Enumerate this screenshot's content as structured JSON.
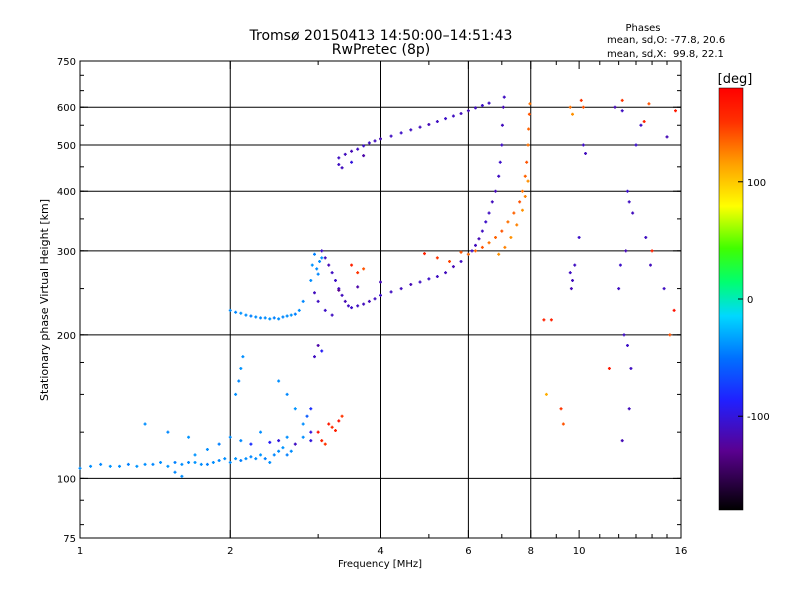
{
  "chart_data": {
    "type": "scatter",
    "title": "Tromsø 20150413 14:50:00–14:51:43",
    "subtitle": "RwPretec (8p)",
    "stats": {
      "heading": "Phases",
      "line_o": "mean, sd,O: -77.8, 20.6",
      "line_x": "mean, sd,X:  99.8, 22.1"
    },
    "xlabel": "Frequency [MHz]",
    "ylabel": "Stationary phase Virtual Height [km]",
    "x_scale": "log",
    "y_scale": "log",
    "xlim": [
      1,
      16
    ],
    "ylim": [
      75,
      750
    ],
    "x_ticks": [
      1,
      2,
      4,
      6,
      8,
      10,
      16
    ],
    "y_ticks": [
      75,
      100,
      200,
      300,
      400,
      500,
      600,
      750
    ],
    "x_gridlines": [
      2,
      4,
      6,
      8
    ],
    "y_gridlines": [
      100,
      200,
      300,
      400,
      500,
      600
    ],
    "grid": true,
    "colorbar": {
      "label": "[deg]",
      "range": [
        -180,
        180
      ],
      "ticks": [
        100,
        0,
        -100
      ]
    },
    "series": [
      {
        "points": [
          [
            1.0,
            105,
            -40
          ],
          [
            1.05,
            106,
            -40
          ],
          [
            1.1,
            107,
            -42
          ],
          [
            1.15,
            106,
            -38
          ],
          [
            1.2,
            106,
            -40
          ],
          [
            1.25,
            107,
            -45
          ],
          [
            1.3,
            106,
            -38
          ],
          [
            1.35,
            107,
            -40
          ],
          [
            1.4,
            107,
            -42
          ],
          [
            1.45,
            108,
            -40
          ],
          [
            1.5,
            106,
            -38
          ],
          [
            1.55,
            108,
            -45
          ],
          [
            1.6,
            107,
            -40
          ],
          [
            1.65,
            108,
            -42
          ],
          [
            1.7,
            108,
            -38
          ],
          [
            1.75,
            107,
            -40
          ],
          [
            1.8,
            107,
            -45
          ],
          [
            1.85,
            108,
            -40
          ],
          [
            1.9,
            109,
            -42
          ],
          [
            1.95,
            110,
            -40
          ],
          [
            2.0,
            108,
            -40
          ],
          [
            2.05,
            110,
            -38
          ],
          [
            2.1,
            109,
            -45
          ],
          [
            2.15,
            110,
            -40
          ],
          [
            2.2,
            111,
            -42
          ],
          [
            2.25,
            110,
            -40
          ],
          [
            2.3,
            112,
            -38
          ],
          [
            2.35,
            110,
            -45
          ],
          [
            2.4,
            108,
            -40
          ],
          [
            2.45,
            112,
            -42
          ],
          [
            2.5,
            114,
            -40
          ],
          [
            2.55,
            116,
            -38
          ],
          [
            2.6,
            112,
            -45
          ],
          [
            2.65,
            114,
            -40
          ],
          [
            1.6,
            101,
            -40
          ],
          [
            1.55,
            103,
            -42
          ],
          [
            1.7,
            112,
            -38
          ],
          [
            1.8,
            115,
            -40
          ],
          [
            1.9,
            118,
            -45
          ],
          [
            2.0,
            122,
            -40
          ],
          [
            2.1,
            120,
            -42
          ],
          [
            2.2,
            118,
            -80
          ],
          [
            2.3,
            125,
            -40
          ],
          [
            2.4,
            119,
            -90
          ],
          [
            2.5,
            120,
            -100
          ],
          [
            2.6,
            122,
            -40
          ],
          [
            2.7,
            118,
            -110
          ],
          [
            2.8,
            122,
            -40
          ],
          [
            2.9,
            120,
            -100
          ],
          [
            2.05,
            150,
            -40
          ],
          [
            2.08,
            160,
            -42
          ],
          [
            2.1,
            170,
            -38
          ],
          [
            2.12,
            180,
            -40
          ],
          [
            2.5,
            160,
            -40
          ],
          [
            2.6,
            150,
            -42
          ],
          [
            2.7,
            140,
            -38
          ],
          [
            2.8,
            130,
            -40
          ],
          [
            2.9,
            125,
            -100
          ],
          [
            2.95,
            180,
            -110
          ],
          [
            3.0,
            190,
            -120
          ],
          [
            3.05,
            185,
            -90
          ],
          [
            2.9,
            140,
            -80
          ],
          [
            2.85,
            135,
            -60
          ],
          [
            1.35,
            130,
            -40
          ],
          [
            1.5,
            125,
            -42
          ],
          [
            1.65,
            122,
            -38
          ]
        ]
      },
      {
        "points": [
          [
            2.0,
            225,
            -40
          ],
          [
            2.05,
            223,
            -42
          ],
          [
            2.1,
            222,
            -38
          ],
          [
            2.15,
            220,
            -40
          ],
          [
            2.2,
            219,
            -45
          ],
          [
            2.25,
            218,
            -40
          ],
          [
            2.3,
            217,
            -42
          ],
          [
            2.35,
            217,
            -40
          ],
          [
            2.4,
            216,
            -38
          ],
          [
            2.45,
            217,
            -45
          ],
          [
            2.5,
            216,
            -40
          ],
          [
            2.55,
            218,
            -42
          ],
          [
            2.6,
            219,
            -40
          ],
          [
            2.65,
            220,
            -38
          ],
          [
            2.7,
            221,
            -45
          ],
          [
            2.75,
            225,
            -40
          ],
          [
            2.8,
            235,
            -42
          ],
          [
            2.9,
            260,
            -40
          ],
          [
            2.92,
            280,
            -38
          ],
          [
            2.95,
            295,
            -45
          ],
          [
            2.98,
            275,
            -40
          ],
          [
            3.0,
            268,
            -42
          ],
          [
            3.02,
            285,
            -40
          ],
          [
            3.05,
            290,
            -38
          ]
        ]
      },
      {
        "points": [
          [
            3.05,
            300,
            -110
          ],
          [
            3.1,
            290,
            -112
          ],
          [
            3.15,
            280,
            -115
          ],
          [
            3.2,
            270,
            -110
          ],
          [
            3.25,
            260,
            -108
          ],
          [
            3.3,
            250,
            -110
          ],
          [
            3.35,
            242,
            -112
          ],
          [
            3.4,
            235,
            -115
          ],
          [
            3.45,
            230,
            -110
          ],
          [
            3.5,
            228,
            -108
          ],
          [
            3.6,
            230,
            -110
          ],
          [
            3.7,
            232,
            -112
          ],
          [
            3.8,
            235,
            -115
          ],
          [
            3.9,
            238,
            -110
          ],
          [
            4.0,
            242,
            -108
          ],
          [
            4.2,
            246,
            -110
          ],
          [
            4.4,
            250,
            -112
          ],
          [
            4.6,
            255,
            -115
          ],
          [
            4.8,
            258,
            -110
          ],
          [
            5.0,
            262,
            -108
          ],
          [
            5.2,
            265,
            -110
          ],
          [
            5.4,
            270,
            -112
          ],
          [
            5.6,
            278,
            -115
          ],
          [
            5.8,
            285,
            -110
          ],
          [
            6.0,
            295,
            -108
          ],
          [
            6.1,
            300,
            -110
          ],
          [
            6.2,
            308,
            -112
          ],
          [
            6.3,
            318,
            -115
          ],
          [
            6.4,
            330,
            -110
          ],
          [
            6.5,
            345,
            -108
          ],
          [
            6.6,
            360,
            -110
          ],
          [
            6.7,
            380,
            -112
          ],
          [
            6.8,
            400,
            -115
          ],
          [
            6.9,
            430,
            -110
          ],
          [
            6.95,
            460,
            -108
          ],
          [
            7.0,
            500,
            -110
          ],
          [
            7.02,
            550,
            -112
          ],
          [
            7.05,
            600,
            -115
          ],
          [
            7.08,
            630,
            -110
          ],
          [
            3.2,
            220,
            -110
          ],
          [
            3.1,
            225,
            -108
          ],
          [
            3.0,
            235,
            -110
          ],
          [
            2.95,
            245,
            -112
          ],
          [
            3.3,
            248,
            -130
          ],
          [
            3.6,
            252,
            -120
          ],
          [
            4.0,
            258,
            -115
          ]
        ]
      },
      {
        "points": [
          [
            3.3,
            470,
            -110
          ],
          [
            3.4,
            478,
            -112
          ],
          [
            3.5,
            485,
            -115
          ],
          [
            3.6,
            490,
            -110
          ],
          [
            3.7,
            498,
            -108
          ],
          [
            3.8,
            505,
            -110
          ],
          [
            3.9,
            510,
            -112
          ],
          [
            4.0,
            515,
            -115
          ],
          [
            4.2,
            522,
            -110
          ],
          [
            4.4,
            530,
            -108
          ],
          [
            4.6,
            538,
            -110
          ],
          [
            4.8,
            545,
            -112
          ],
          [
            5.0,
            552,
            -115
          ],
          [
            5.2,
            560,
            -110
          ],
          [
            5.4,
            568,
            -108
          ],
          [
            5.6,
            575,
            -110
          ],
          [
            5.8,
            582,
            -112
          ],
          [
            6.0,
            590,
            -115
          ],
          [
            6.2,
            598,
            -110
          ],
          [
            6.4,
            605,
            -108
          ],
          [
            6.6,
            612,
            -110
          ],
          [
            3.3,
            455,
            -110
          ],
          [
            3.35,
            448,
            -112
          ],
          [
            3.5,
            460,
            -100
          ],
          [
            3.7,
            475,
            -120
          ]
        ]
      },
      {
        "points": [
          [
            5.8,
            298,
            140
          ],
          [
            6.0,
            295,
            130
          ],
          [
            6.2,
            300,
            135
          ],
          [
            6.4,
            305,
            140
          ],
          [
            6.6,
            312,
            130
          ],
          [
            6.8,
            320,
            135
          ],
          [
            7.0,
            330,
            140
          ],
          [
            7.2,
            345,
            130
          ],
          [
            7.4,
            360,
            135
          ],
          [
            7.6,
            380,
            140
          ],
          [
            7.7,
            400,
            130
          ],
          [
            7.8,
            430,
            135
          ],
          [
            7.85,
            460,
            140
          ],
          [
            7.9,
            500,
            130
          ],
          [
            7.92,
            540,
            135
          ],
          [
            7.95,
            580,
            140
          ],
          [
            7.97,
            610,
            130
          ],
          [
            6.9,
            295,
            120
          ],
          [
            7.1,
            305,
            125
          ],
          [
            7.3,
            320,
            120
          ],
          [
            7.5,
            340,
            125
          ],
          [
            7.7,
            365,
            120
          ],
          [
            7.8,
            390,
            125
          ],
          [
            7.9,
            420,
            120
          ],
          [
            5.2,
            290,
            150
          ],
          [
            5.5,
            285,
            145
          ],
          [
            4.9,
            296,
            160
          ]
        ]
      },
      {
        "points": [
          [
            3.5,
            280,
            160
          ],
          [
            3.6,
            270,
            150
          ],
          [
            3.7,
            275,
            140
          ],
          [
            3.0,
            125,
            170
          ],
          [
            3.05,
            120,
            160
          ],
          [
            3.1,
            118,
            150
          ],
          [
            3.15,
            130,
            165
          ],
          [
            3.2,
            128,
            155
          ],
          [
            3.25,
            126,
            160
          ],
          [
            3.3,
            132,
            170
          ],
          [
            3.35,
            135,
            150
          ]
        ]
      },
      {
        "points": [
          [
            8.5,
            215,
            160
          ],
          [
            8.6,
            150,
            110
          ],
          [
            9.2,
            140,
            150
          ],
          [
            9.3,
            130,
            140
          ],
          [
            8.8,
            215,
            160
          ],
          [
            9.6,
            600,
            130
          ],
          [
            9.7,
            580,
            120
          ],
          [
            10.1,
            620,
            150
          ],
          [
            10.2,
            600,
            140
          ],
          [
            11.5,
            170,
            165
          ],
          [
            12.2,
            620,
            150
          ],
          [
            13.5,
            560,
            160
          ],
          [
            13.8,
            610,
            140
          ],
          [
            14.0,
            300,
            160
          ],
          [
            15.2,
            200,
            140
          ],
          [
            15.5,
            225,
            170
          ],
          [
            15.6,
            590,
            165
          ],
          [
            9.6,
            270,
            -110
          ],
          [
            9.7,
            260,
            -112
          ],
          [
            9.65,
            250,
            -115
          ],
          [
            9.8,
            280,
            -110
          ],
          [
            10.0,
            320,
            -108
          ],
          [
            10.2,
            500,
            -110
          ],
          [
            10.3,
            480,
            -112
          ],
          [
            11.8,
            600,
            -115
          ],
          [
            12.2,
            590,
            -110
          ],
          [
            12.5,
            400,
            -108
          ],
          [
            12.6,
            380,
            -110
          ],
          [
            12.8,
            360,
            -112
          ],
          [
            12.4,
            300,
            -115
          ],
          [
            12.3,
            200,
            -110
          ],
          [
            12.5,
            190,
            -108
          ],
          [
            12.7,
            170,
            -110
          ],
          [
            12.6,
            140,
            -112
          ],
          [
            12.2,
            120,
            -115
          ],
          [
            13.3,
            550,
            -110
          ],
          [
            13.0,
            500,
            -108
          ],
          [
            13.6,
            320,
            -110
          ],
          [
            13.9,
            280,
            -112
          ],
          [
            15.0,
            520,
            -115
          ],
          [
            14.8,
            250,
            -110
          ],
          [
            12.1,
            280,
            -108
          ],
          [
            12.0,
            250,
            -110
          ]
        ]
      }
    ]
  }
}
